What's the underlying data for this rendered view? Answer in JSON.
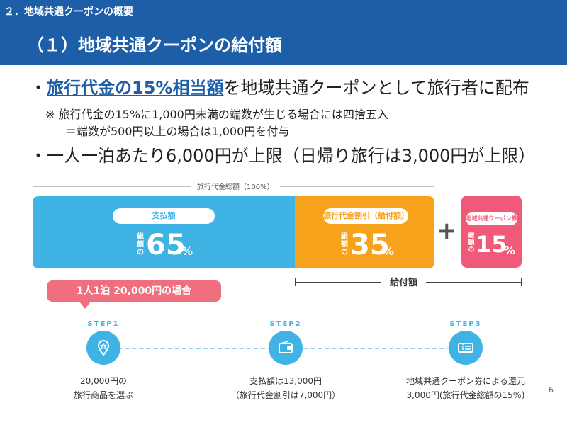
{
  "header": {
    "section": "２．地域共通クーポンの概要",
    "title": "（１）地域共通クーポンの給付額"
  },
  "bullets": {
    "b1_prefix": "・",
    "b1_highlight": "旅行代金の15%相当額",
    "b1_rest": "を地域共通クーポンとして旅行者に配布",
    "note1": "※ 旅行代金の15%に1,000円未満の端数が生じる場合には四捨五入",
    "note2": "＝端数が500円以上の場合は1,000円を付与",
    "b2": "・一人一泊あたり6,000円が上限（日帰り旅行は3,000円が上限）"
  },
  "diagram": {
    "total_label": "旅行代金総額（100%）",
    "paid": {
      "label": "支払額",
      "prefix": "総額の",
      "value": "65",
      "unit": "%",
      "share": 0.65,
      "color": "#3fb3e3"
    },
    "discount": {
      "label": "旅行代金割引（給付額）",
      "prefix": "総額の",
      "value": "35",
      "unit": "%",
      "share": 0.35,
      "color": "#f7a21b"
    },
    "plus": "+",
    "coupon": {
      "label": "地域共通クーポン券",
      "prefix": "総額の",
      "value": "15",
      "unit": "%",
      "color": "#f05a78"
    },
    "benefit_label": "給付額"
  },
  "example": {
    "callout": "1人1泊 20,000円の場合",
    "steps": [
      {
        "name": "STEP1",
        "icon": "map-pin-icon",
        "line1": "20,000円の",
        "line2": "旅行商品を選ぶ"
      },
      {
        "name": "STEP2",
        "icon": "wallet-icon",
        "line1": "支払額は13,000円",
        "line2": "（旅行代金割引は7,000円）"
      },
      {
        "name": "STEP3",
        "icon": "coupon-ticket-icon",
        "line1": "地域共通クーポン券による還元",
        "line2": "3,000円(旅行代金総額の15％)"
      }
    ]
  },
  "page_number": "6"
}
